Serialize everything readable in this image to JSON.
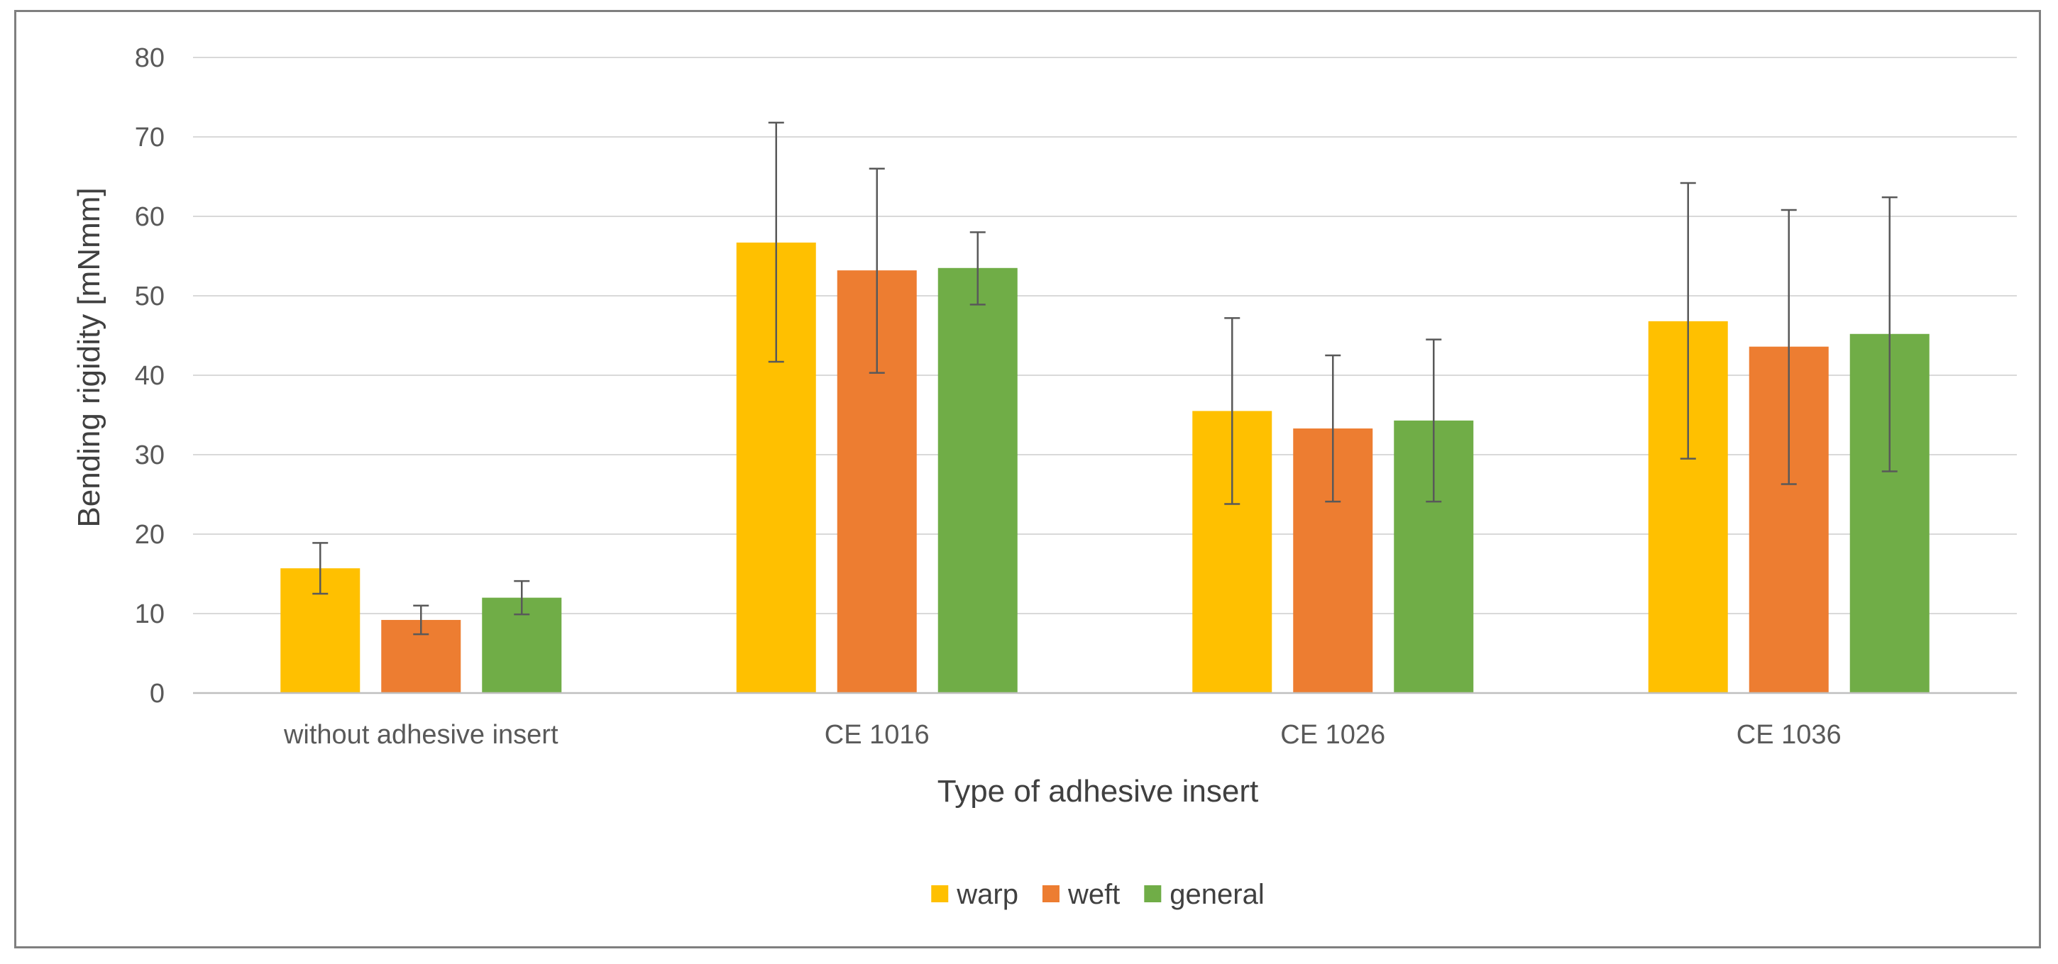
{
  "chart_data": {
    "type": "bar",
    "title": "",
    "xlabel": "Type of adhesive insert",
    "ylabel": "Bending rigidity [mNmm]",
    "ylim": [
      0,
      80
    ],
    "yticks": [
      "0",
      "10",
      "20",
      "30",
      "40",
      "50",
      "60",
      "70",
      "80"
    ],
    "grid": true,
    "legend_position": "bottom",
    "categories": [
      "without adhesive insert",
      "CE 1016",
      "CE 1026",
      "CE 1036"
    ],
    "series": [
      {
        "name": "warp",
        "color": "#ffc000",
        "values": [
          15.7,
          56.7,
          35.5,
          46.8
        ],
        "error_low": [
          12.5,
          41.7,
          23.8,
          29.5
        ],
        "error_high": [
          18.9,
          71.8,
          47.2,
          64.2
        ]
      },
      {
        "name": "weft",
        "color": "#ed7d31",
        "values": [
          9.2,
          53.2,
          33.3,
          43.6
        ],
        "error_low": [
          7.4,
          40.3,
          24.1,
          26.3
        ],
        "error_high": [
          11.0,
          66.0,
          42.5,
          60.8
        ]
      },
      {
        "name": "general",
        "color": "#70ad47",
        "values": [
          12.0,
          53.5,
          34.3,
          45.2
        ],
        "error_low": [
          9.9,
          48.9,
          24.1,
          27.9
        ],
        "error_high": [
          14.1,
          58.0,
          44.5,
          62.4
        ]
      }
    ]
  }
}
